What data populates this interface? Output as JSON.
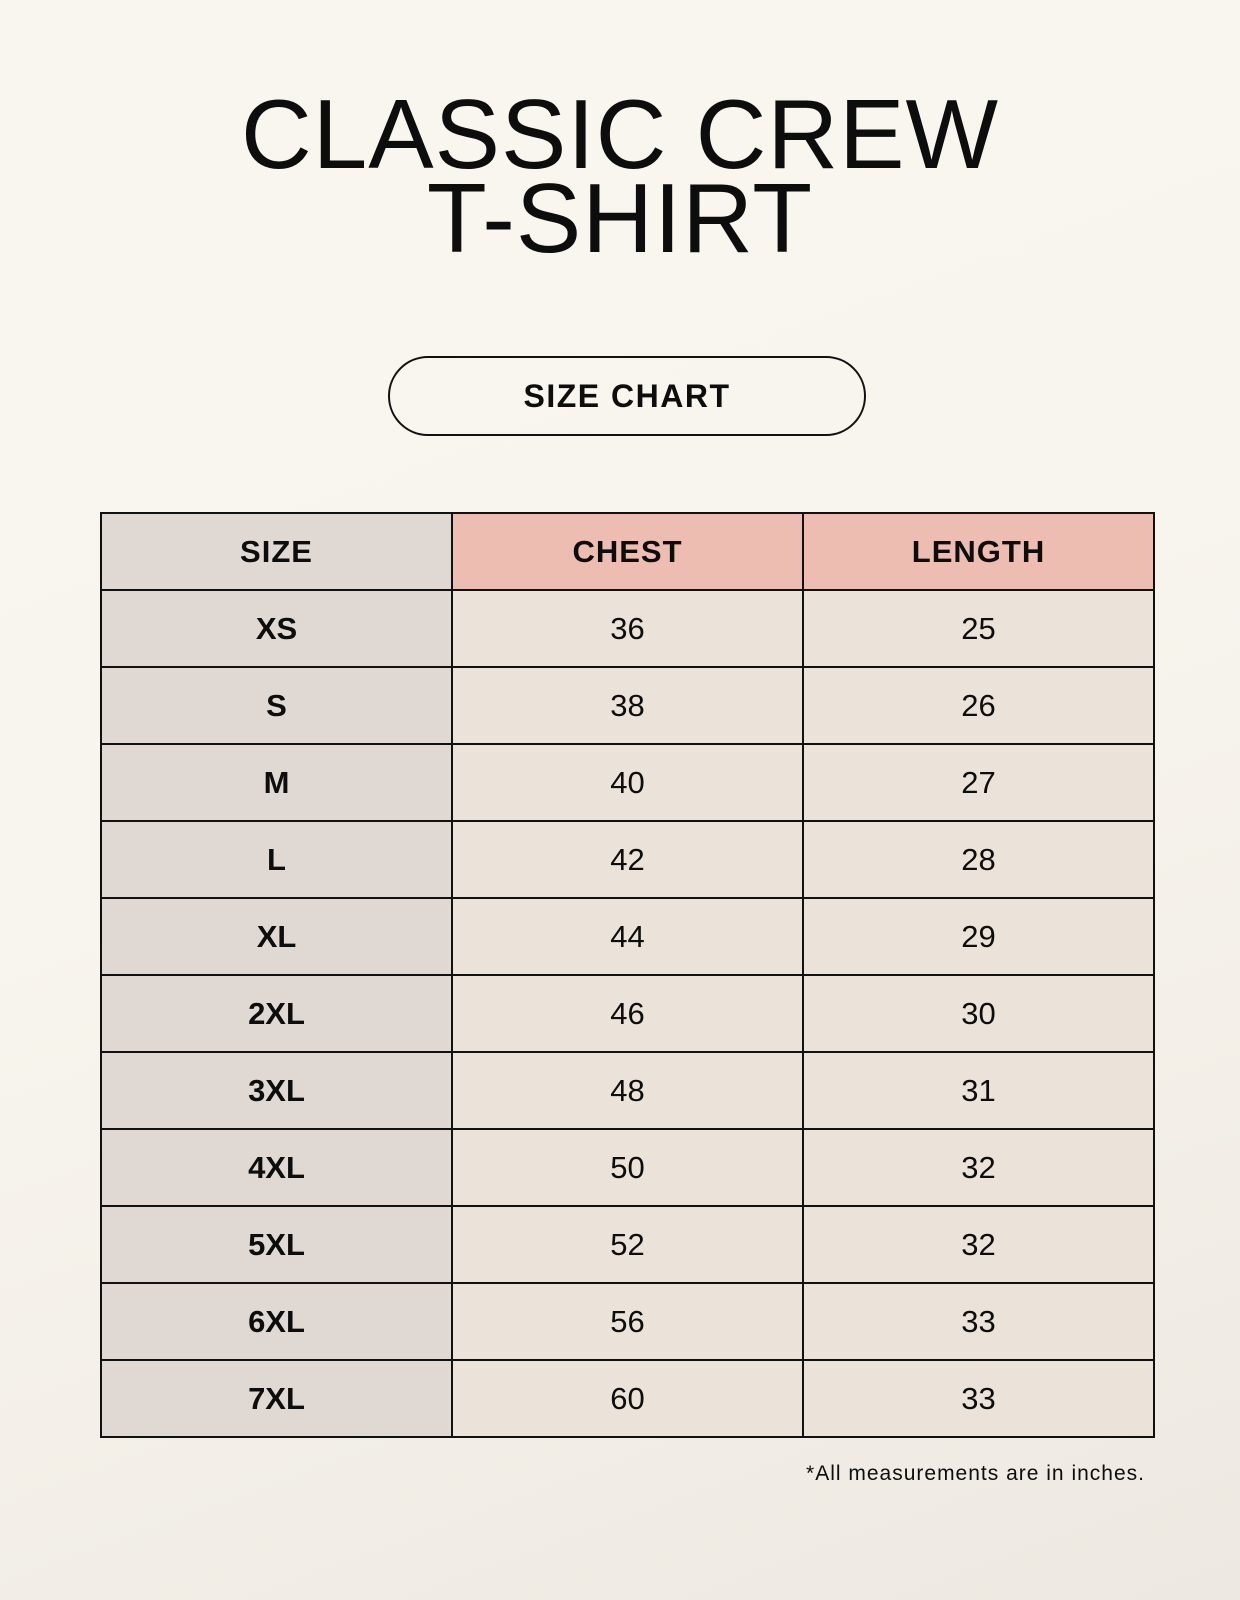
{
  "title_line1": "CLASSIC CREW",
  "title_line2": "T-SHIRT",
  "badge": "SIZE CHART",
  "table": {
    "headers": [
      "SIZE",
      "CHEST",
      "LENGTH"
    ],
    "rows": [
      [
        "XS",
        "36",
        "25"
      ],
      [
        "S",
        "38",
        "26"
      ],
      [
        "M",
        "40",
        "27"
      ],
      [
        "L",
        "42",
        "28"
      ],
      [
        "XL",
        "44",
        "29"
      ],
      [
        "2XL",
        "46",
        "30"
      ],
      [
        "3XL",
        "48",
        "31"
      ],
      [
        "4XL",
        "50",
        "32"
      ],
      [
        "5XL",
        "52",
        "32"
      ],
      [
        "6XL",
        "56",
        "33"
      ],
      [
        "7XL",
        "60",
        "33"
      ]
    ]
  },
  "footnote": "*All measurements are in inches.",
  "colors": {
    "size_column": "#e0d9d3",
    "measure_header": "#ecbdb0",
    "cell": "#ebe3d9"
  }
}
